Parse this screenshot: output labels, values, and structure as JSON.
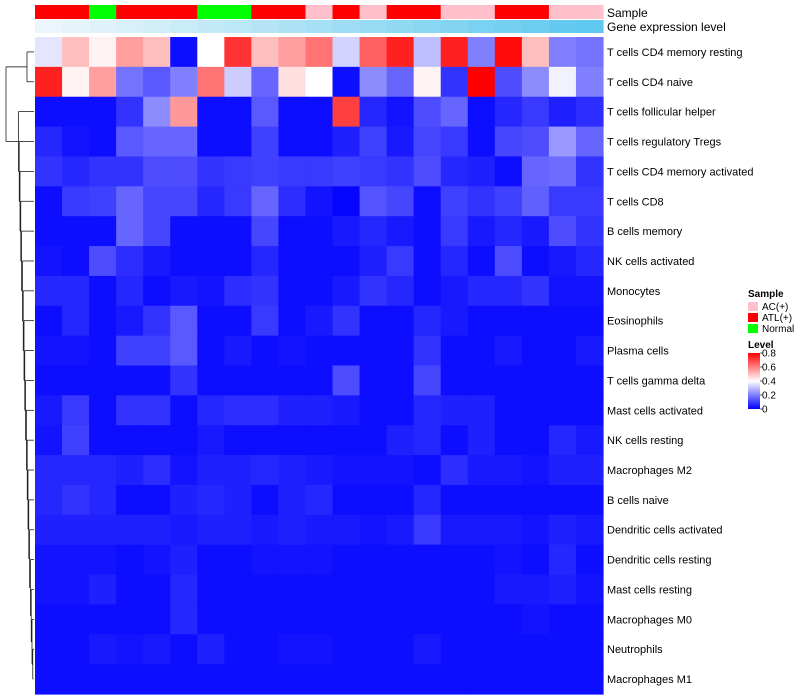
{
  "chart_data": {
    "type": "heatmap",
    "title": "",
    "annotation_titles": {
      "sample": "Sample",
      "gene": "Gene expression level"
    },
    "rows": [
      "T cells CD4 memory resting",
      "T cells CD4 naive",
      "T cells follicular helper",
      "T cells regulatory  Tregs",
      "T cells CD4 memory activated",
      "T cells CD8",
      "B cells memory",
      "NK cells activated",
      "Monocytes",
      "Eosinophils",
      "Plasma cells",
      "T cells gamma delta",
      "Mast cells activated",
      "NK cells resting",
      "Macrophages M2",
      "B cells naive",
      "Dendritic cells activated",
      "Dendritic cells resting",
      "Mast cells resting",
      "Macrophages M0",
      "Neutrophils",
      "Macrophages M1"
    ],
    "sample_annotation": [
      "ATL(+)",
      "ATL(+)",
      "Normal",
      "ATL(+)",
      "ATL(+)",
      "ATL(+)",
      "Normal",
      "Normal",
      "ATL(+)",
      "ATL(+)",
      "AC(+)",
      "ATL(+)",
      "AC(+)",
      "ATL(+)",
      "ATL(+)",
      "AC(+)",
      "AC(+)",
      "ATL(+)",
      "ATL(+)",
      "AC(+)",
      "AC(+)"
    ],
    "gene_expression_annotation": [
      0.02,
      0.05,
      0.08,
      0.12,
      0.16,
      0.2,
      0.24,
      0.28,
      0.32,
      0.36,
      0.4,
      0.44,
      0.48,
      0.52,
      0.56,
      0.6,
      0.64,
      0.68,
      0.72,
      0.76,
      0.8
    ],
    "values": [
      [
        0.36,
        0.5,
        0.42,
        0.55,
        0.5,
        0.02,
        0.4,
        0.72,
        0.5,
        0.55,
        0.62,
        0.33,
        0.65,
        0.75,
        0.3,
        0.75,
        0.2,
        0.78,
        0.5,
        0.2,
        0.18
      ],
      [
        0.75,
        0.42,
        0.55,
        0.18,
        0.14,
        0.2,
        0.62,
        0.32,
        0.16,
        0.45,
        0.4,
        0.02,
        0.22,
        0.16,
        0.42,
        0.08,
        0.8,
        0.12,
        0.22,
        0.38,
        0.2
      ],
      [
        0.02,
        0.02,
        0.02,
        0.08,
        0.22,
        0.56,
        0.02,
        0.02,
        0.14,
        0.02,
        0.02,
        0.7,
        0.06,
        0.03,
        0.12,
        0.16,
        0.02,
        0.06,
        0.09,
        0.05,
        0.07
      ],
      [
        0.06,
        0.03,
        0.02,
        0.14,
        0.16,
        0.16,
        0.02,
        0.02,
        0.1,
        0.02,
        0.02,
        0.05,
        0.1,
        0.04,
        0.11,
        0.09,
        0.02,
        0.11,
        0.12,
        0.24,
        0.16
      ],
      [
        0.08,
        0.06,
        0.08,
        0.08,
        0.12,
        0.12,
        0.08,
        0.09,
        0.1,
        0.09,
        0.09,
        0.1,
        0.09,
        0.08,
        0.12,
        0.06,
        0.05,
        0.02,
        0.16,
        0.17,
        0.08
      ],
      [
        0.02,
        0.09,
        0.1,
        0.16,
        0.11,
        0.11,
        0.06,
        0.09,
        0.16,
        0.07,
        0.03,
        0.01,
        0.13,
        0.11,
        0.02,
        0.1,
        0.08,
        0.1,
        0.15,
        0.09,
        0.09
      ],
      [
        0.02,
        0.02,
        0.02,
        0.16,
        0.11,
        0.02,
        0.02,
        0.02,
        0.11,
        0.02,
        0.02,
        0.04,
        0.06,
        0.04,
        0.02,
        0.09,
        0.04,
        0.06,
        0.04,
        0.12,
        0.08
      ],
      [
        0.03,
        0.02,
        0.12,
        0.07,
        0.04,
        0.02,
        0.02,
        0.02,
        0.06,
        0.02,
        0.02,
        0.02,
        0.05,
        0.09,
        0.02,
        0.06,
        0.02,
        0.12,
        0.02,
        0.04,
        0.06
      ],
      [
        0.06,
        0.06,
        0.02,
        0.06,
        0.02,
        0.04,
        0.03,
        0.07,
        0.08,
        0.02,
        0.02,
        0.04,
        0.08,
        0.06,
        0.02,
        0.04,
        0.06,
        0.06,
        0.08,
        0.03,
        0.03
      ],
      [
        0.02,
        0.06,
        0.02,
        0.04,
        0.08,
        0.14,
        0.02,
        0.02,
        0.09,
        0.02,
        0.04,
        0.08,
        0.02,
        0.02,
        0.06,
        0.04,
        0.02,
        0.02,
        0.02,
        0.02,
        0.02
      ],
      [
        0.03,
        0.03,
        0.02,
        0.1,
        0.1,
        0.14,
        0.02,
        0.04,
        0.02,
        0.03,
        0.02,
        0.02,
        0.02,
        0.02,
        0.08,
        0.02,
        0.02,
        0.04,
        0.02,
        0.02,
        0.04
      ],
      [
        0.02,
        0.02,
        0.02,
        0.02,
        0.02,
        0.08,
        0.02,
        0.02,
        0.02,
        0.02,
        0.02,
        0.12,
        0.02,
        0.02,
        0.11,
        0.02,
        0.02,
        0.02,
        0.02,
        0.02,
        0.02
      ],
      [
        0.04,
        0.09,
        0.02,
        0.08,
        0.08,
        0.02,
        0.06,
        0.07,
        0.07,
        0.05,
        0.05,
        0.04,
        0.02,
        0.02,
        0.06,
        0.05,
        0.05,
        0.02,
        0.02,
        0.02,
        0.02
      ],
      [
        0.03,
        0.1,
        0.02,
        0.02,
        0.02,
        0.02,
        0.04,
        0.02,
        0.02,
        0.02,
        0.02,
        0.02,
        0.02,
        0.05,
        0.06,
        0.02,
        0.05,
        0.02,
        0.02,
        0.06,
        0.04
      ],
      [
        0.06,
        0.06,
        0.06,
        0.05,
        0.07,
        0.03,
        0.05,
        0.05,
        0.06,
        0.05,
        0.04,
        0.03,
        0.03,
        0.03,
        0.02,
        0.07,
        0.04,
        0.04,
        0.03,
        0.05,
        0.05
      ],
      [
        0.06,
        0.08,
        0.06,
        0.02,
        0.02,
        0.05,
        0.06,
        0.05,
        0.02,
        0.05,
        0.06,
        0.02,
        0.02,
        0.02,
        0.06,
        0.02,
        0.02,
        0.02,
        0.02,
        0.02,
        0.02
      ],
      [
        0.05,
        0.05,
        0.05,
        0.05,
        0.05,
        0.04,
        0.05,
        0.05,
        0.04,
        0.05,
        0.04,
        0.04,
        0.03,
        0.04,
        0.09,
        0.04,
        0.04,
        0.04,
        0.03,
        0.05,
        0.04
      ],
      [
        0.03,
        0.03,
        0.03,
        0.02,
        0.03,
        0.05,
        0.02,
        0.02,
        0.03,
        0.03,
        0.03,
        0.02,
        0.02,
        0.02,
        0.02,
        0.02,
        0.02,
        0.03,
        0.02,
        0.06,
        0.02
      ],
      [
        0.03,
        0.03,
        0.05,
        0.02,
        0.02,
        0.06,
        0.02,
        0.02,
        0.02,
        0.02,
        0.02,
        0.02,
        0.02,
        0.02,
        0.02,
        0.02,
        0.02,
        0.04,
        0.04,
        0.05,
        0.03
      ],
      [
        0.02,
        0.02,
        0.02,
        0.02,
        0.02,
        0.06,
        0.02,
        0.02,
        0.02,
        0.02,
        0.02,
        0.02,
        0.02,
        0.02,
        0.02,
        0.02,
        0.02,
        0.02,
        0.03,
        0.02,
        0.02
      ],
      [
        0.02,
        0.02,
        0.04,
        0.03,
        0.04,
        0.02,
        0.05,
        0.02,
        0.02,
        0.03,
        0.03,
        0.02,
        0.02,
        0.02,
        0.04,
        0.02,
        0.02,
        0.02,
        0.02,
        0.02,
        0.02
      ],
      [
        0.02,
        0.02,
        0.02,
        0.02,
        0.02,
        0.02,
        0.02,
        0.02,
        0.02,
        0.02,
        0.02,
        0.02,
        0.02,
        0.02,
        0.02,
        0.02,
        0.02,
        0.02,
        0.02,
        0.02,
        0.02
      ]
    ],
    "legend_sample": {
      "title": "Sample",
      "entries": [
        {
          "label": "AC(+)",
          "color": "#ffc0cb"
        },
        {
          "label": "ATL(+)",
          "color": "#ff0000"
        },
        {
          "label": "Normal",
          "color": "#00ff00"
        }
      ]
    },
    "legend_level": {
      "title": "Level",
      "ticks": [
        "0.8",
        "0.6",
        "0.4",
        "0.2",
        "0"
      ],
      "range": [
        0,
        0.8
      ]
    },
    "color_scale": {
      "low": "#0000ff",
      "mid": "#ffffff",
      "high": "#ff0000",
      "range": [
        0,
        0.8
      ]
    },
    "gene_annotation_colors": {
      "low": "#eaf6fb",
      "high": "#5ec8ee"
    }
  }
}
